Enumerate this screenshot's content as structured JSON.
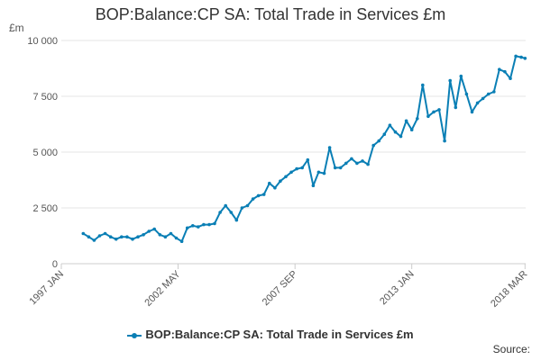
{
  "chart_data": {
    "type": "line",
    "title": "BOP:Balance:CP SA: Total Trade in Services £m",
    "ylabel": "£m",
    "xlabel": "",
    "ylim": [
      0,
      10000
    ],
    "yticks": [
      0,
      2500,
      5000,
      7500,
      10000
    ],
    "ytick_labels": [
      "0",
      "2 500",
      "5 000",
      "7 500",
      "10 000"
    ],
    "xlim": [
      1997.0,
      2018.2
    ],
    "xticks": [
      1997.0,
      2002.33,
      2007.67,
      2013.0,
      2018.17
    ],
    "xtick_labels": [
      "1997 JAN",
      "2002 MAY",
      "2007 SEP",
      "2013 JAN",
      "2018 MAR"
    ],
    "grid": true,
    "legend_position": "bottom-center",
    "series": [
      {
        "name": "BOP:Balance:CP SA: Total Trade in Services £m",
        "color": "#0a7fb5",
        "x": [
          1998.0,
          1998.25,
          1998.5,
          1998.75,
          1999.0,
          1999.25,
          1999.5,
          1999.75,
          2000.0,
          2000.25,
          2000.5,
          2000.75,
          2001.0,
          2001.25,
          2001.5,
          2001.75,
          2002.0,
          2002.25,
          2002.5,
          2002.75,
          2003.0,
          2003.25,
          2003.5,
          2003.75,
          2004.0,
          2004.25,
          2004.5,
          2004.75,
          2005.0,
          2005.25,
          2005.5,
          2005.75,
          2006.0,
          2006.25,
          2006.5,
          2006.75,
          2007.0,
          2007.25,
          2007.5,
          2007.75,
          2008.0,
          2008.25,
          2008.5,
          2008.75,
          2009.0,
          2009.25,
          2009.5,
          2009.75,
          2010.0,
          2010.25,
          2010.5,
          2010.75,
          2011.0,
          2011.25,
          2011.5,
          2011.75,
          2012.0,
          2012.25,
          2012.5,
          2012.75,
          2013.0,
          2013.25,
          2013.5,
          2013.75,
          2014.0,
          2014.25,
          2014.5,
          2014.75,
          2015.0,
          2015.25,
          2015.5,
          2015.75,
          2016.0,
          2016.25,
          2016.5,
          2016.75,
          2017.0,
          2017.25,
          2017.5,
          2017.75,
          2018.0,
          2018.17
        ],
        "values": [
          1350,
          1200,
          1050,
          1250,
          1350,
          1200,
          1100,
          1200,
          1200,
          1100,
          1200,
          1300,
          1450,
          1550,
          1300,
          1200,
          1350,
          1150,
          1000,
          1600,
          1700,
          1650,
          1750,
          1750,
          1800,
          2300,
          2600,
          2300,
          1950,
          2500,
          2600,
          2900,
          3050,
          3100,
          3600,
          3400,
          3700,
          3900,
          4100,
          4250,
          4300,
          4650,
          3500,
          4100,
          4050,
          5200,
          4300,
          4300,
          4500,
          4700,
          4500,
          4600,
          4450,
          5300,
          5500,
          5800,
          6200,
          5900,
          5700,
          6400,
          6000,
          6500,
          8000,
          6600,
          6800,
          6900,
          5500,
          8200,
          7000,
          8400,
          7600,
          6800,
          7200,
          7400,
          7600,
          7700,
          8700,
          8600,
          8300,
          9300,
          9250,
          9200
        ]
      }
    ],
    "source_label": "Source:"
  }
}
